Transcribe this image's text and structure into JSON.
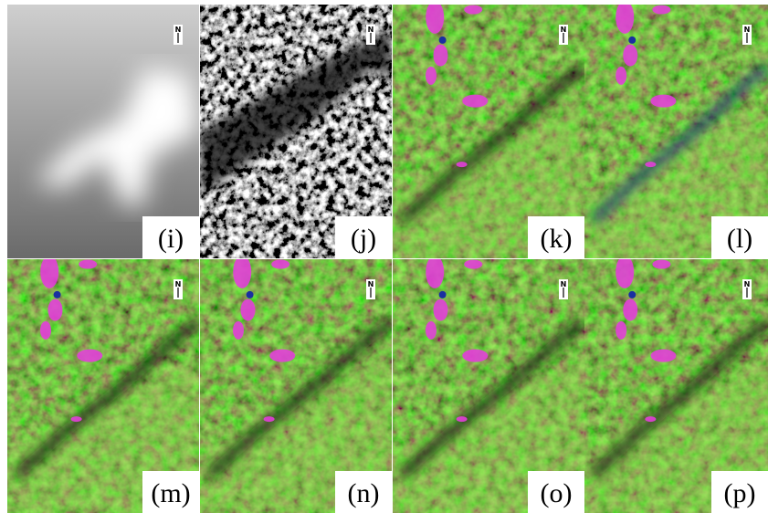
{
  "north_arrow": "N",
  "panels": [
    {
      "label": "(i)",
      "kind": "dem"
    },
    {
      "label": "(j)",
      "kind": "hillshade"
    },
    {
      "label": "(k)",
      "kind": "color"
    },
    {
      "label": "(l)",
      "kind": "color-blue"
    },
    {
      "label": "(m)",
      "kind": "color"
    },
    {
      "label": "(n)",
      "kind": "color"
    },
    {
      "label": "(o)",
      "kind": "color"
    },
    {
      "label": "(p)",
      "kind": "color"
    }
  ]
}
